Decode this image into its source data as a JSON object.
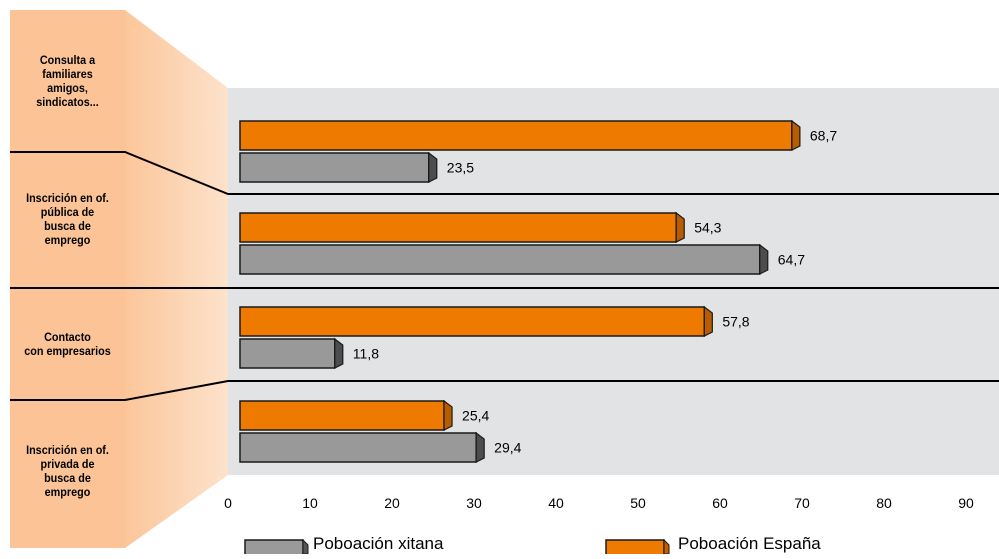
{
  "chart_data": {
    "type": "bar",
    "orientation": "horizontal",
    "categories": [
      "Consulta a familiares amigos, sindicatos...",
      "Inscrición en of. pública de busca de emprego",
      "Contacto con empresarios",
      "Inscrición en of. privada de busca de emprego"
    ],
    "category_lines": [
      [
        "Consulta a",
        "familiares",
        "amigos,",
        "sindicatos..."
      ],
      [
        "Inscrición en of.",
        "pública de",
        "busca de",
        "emprego"
      ],
      [
        "Contacto",
        "con empresarios"
      ],
      [
        "Inscrición en of.",
        "privada de",
        "busca de",
        "emprego"
      ]
    ],
    "series": [
      {
        "name": "Poboación España",
        "color": "#ee7a00",
        "values": [
          68.7,
          54.3,
          57.8,
          25.4
        ],
        "labels": [
          "68,7",
          "54,3",
          "57,8",
          "25,4"
        ]
      },
      {
        "name": "Poboación xitana",
        "color": "#999999",
        "values": [
          23.5,
          64.7,
          11.8,
          29.4
        ],
        "labels": [
          "23,5",
          "64,7",
          "11,8",
          "29,4"
        ]
      }
    ],
    "xlim": [
      0,
      90
    ],
    "xticks": [
      "0",
      "10",
      "20",
      "30",
      "40",
      "50",
      "60",
      "70",
      "80",
      "90"
    ],
    "legend": [
      "Poboación xitana",
      "Poboación España"
    ],
    "legend_position": "bottom",
    "colors": {
      "panel": "#fbc495",
      "plot_bg": "#e2e3e5",
      "bar_edge": "#1a1a1a"
    }
  }
}
